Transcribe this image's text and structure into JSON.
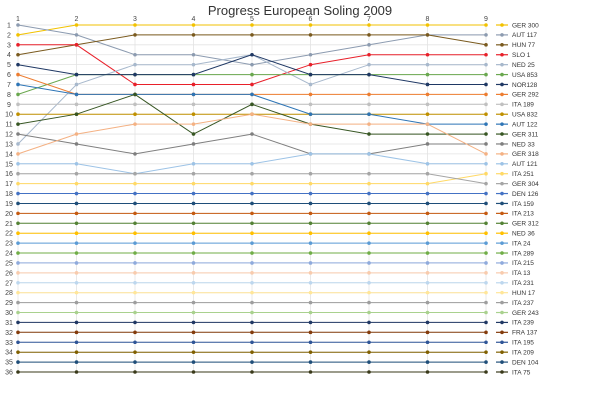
{
  "chart_data": {
    "type": "line",
    "title": "Progress European Soling 2009",
    "x": [
      1,
      2,
      3,
      4,
      5,
      6,
      7,
      8,
      9
    ],
    "x_tick_labels": [
      "1",
      "2",
      "3",
      "4",
      "5",
      "6",
      "7",
      "8",
      "9"
    ],
    "ylim": [
      1,
      36
    ],
    "y_inverted": true,
    "y_tick_labels": [
      "1",
      "2",
      "3",
      "4",
      "5",
      "6",
      "7",
      "8",
      "9",
      "10",
      "11",
      "12",
      "13",
      "14",
      "15",
      "16",
      "17",
      "18",
      "19",
      "20",
      "21",
      "22",
      "23",
      "24",
      "25",
      "26",
      "27",
      "28",
      "29",
      "30",
      "31",
      "32",
      "33",
      "34",
      "35",
      "36"
    ],
    "grid": true,
    "legend_position": "right",
    "series": [
      {
        "name": "GER 300",
        "color": "#f2c200",
        "values": [
          2,
          1,
          1,
          1,
          1,
          1,
          1,
          1,
          1
        ]
      },
      {
        "name": "AUT 117",
        "color": "#8c9bb0",
        "values": [
          1,
          2,
          4,
          4,
          5,
          4,
          3,
          2,
          2
        ]
      },
      {
        "name": "HUN 77",
        "color": "#7a5a1e",
        "values": [
          4,
          3,
          2,
          2,
          2,
          2,
          2,
          2,
          3
        ]
      },
      {
        "name": "SLO 1",
        "color": "#e8202a",
        "values": [
          3,
          3,
          7,
          7,
          7,
          5,
          4,
          4,
          4
        ]
      },
      {
        "name": "NED 25",
        "color": "#a7b8cc",
        "values": [
          13,
          7,
          5,
          5,
          4,
          7,
          5,
          5,
          5
        ]
      },
      {
        "name": "USA 853",
        "color": "#6aa84f",
        "values": [
          8,
          6,
          6,
          6,
          6,
          6,
          6,
          6,
          6
        ]
      },
      {
        "name": "NOR128",
        "color": "#1f3864",
        "values": [
          5,
          6,
          6,
          6,
          4,
          6,
          6,
          7,
          7
        ]
      },
      {
        "name": "GER 292",
        "color": "#ed7d31",
        "values": [
          6,
          8,
          8,
          8,
          8,
          8,
          8,
          8,
          8
        ]
      },
      {
        "name": "ITA 189",
        "color": "#c0c0c0",
        "values": [
          9,
          9,
          9,
          9,
          9,
          9,
          9,
          9,
          9
        ]
      },
      {
        "name": "USA 832",
        "color": "#bf9000",
        "values": [
          10,
          10,
          10,
          10,
          10,
          10,
          10,
          10,
          10
        ]
      },
      {
        "name": "AUT 122",
        "color": "#2e75b6",
        "values": [
          7,
          8,
          8,
          8,
          8,
          10,
          10,
          11,
          11
        ]
      },
      {
        "name": "GER 311",
        "color": "#375623",
        "values": [
          11,
          10,
          8,
          12,
          9,
          11,
          12,
          12,
          12
        ]
      },
      {
        "name": "NED 33",
        "color": "#7f7f7f",
        "values": [
          12,
          13,
          14,
          13,
          12,
          14,
          14,
          13,
          13
        ]
      },
      {
        "name": "GER 318",
        "color": "#f4b183",
        "values": [
          14,
          12,
          11,
          11,
          10,
          11,
          11,
          11,
          14
        ]
      },
      {
        "name": "AUT 121",
        "color": "#9dc3e6",
        "values": [
          15,
          15,
          16,
          15,
          15,
          14,
          14,
          15,
          15
        ]
      },
      {
        "name": "ITA 251",
        "color": "#ffd966",
        "values": [
          17,
          17,
          17,
          17,
          17,
          17,
          17,
          17,
          16
        ]
      },
      {
        "name": "GER 304",
        "color": "#a5a5a5",
        "values": [
          16,
          16,
          16,
          16,
          16,
          16,
          16,
          16,
          17
        ]
      },
      {
        "name": "DEN 126",
        "color": "#4472c4",
        "values": [
          18,
          18,
          18,
          18,
          18,
          18,
          18,
          18,
          18
        ]
      },
      {
        "name": "ITA 159",
        "color": "#1f4e79",
        "values": [
          19,
          19,
          19,
          19,
          19,
          19,
          19,
          19,
          19
        ]
      },
      {
        "name": "ITA 213",
        "color": "#c55a11",
        "values": [
          20,
          20,
          20,
          20,
          20,
          20,
          20,
          20,
          20
        ]
      },
      {
        "name": "GER 312",
        "color": "#548235",
        "values": [
          21,
          21,
          21,
          21,
          21,
          21,
          21,
          21,
          21
        ]
      },
      {
        "name": "NED 36",
        "color": "#ffc000",
        "values": [
          22,
          22,
          22,
          22,
          22,
          22,
          22,
          22,
          22
        ]
      },
      {
        "name": "ITA 24",
        "color": "#5b9bd5",
        "values": [
          23,
          23,
          23,
          23,
          23,
          23,
          23,
          23,
          23
        ]
      },
      {
        "name": "ITA 289",
        "color": "#70ad47",
        "values": [
          24,
          24,
          24,
          24,
          24,
          24,
          24,
          24,
          24
        ]
      },
      {
        "name": "ITA 215",
        "color": "#8faadc",
        "values": [
          25,
          25,
          25,
          25,
          25,
          25,
          25,
          25,
          25
        ]
      },
      {
        "name": "ITA 13",
        "color": "#f8cbad",
        "values": [
          26,
          26,
          26,
          26,
          26,
          26,
          26,
          26,
          26
        ]
      },
      {
        "name": "ITA 231",
        "color": "#bdd7ee",
        "values": [
          27,
          27,
          27,
          27,
          27,
          27,
          27,
          27,
          27
        ]
      },
      {
        "name": "HUN 17",
        "color": "#ffe699",
        "values": [
          28,
          28,
          28,
          28,
          28,
          28,
          28,
          28,
          28
        ]
      },
      {
        "name": "ITA 237",
        "color": "#9e9e9e",
        "values": [
          29,
          29,
          29,
          29,
          29,
          29,
          29,
          29,
          29
        ]
      },
      {
        "name": "GER 243",
        "color": "#a9d18e",
        "values": [
          30,
          30,
          30,
          30,
          30,
          30,
          30,
          30,
          30
        ]
      },
      {
        "name": "ITA 239",
        "color": "#203864",
        "values": [
          31,
          31,
          31,
          31,
          31,
          31,
          31,
          31,
          31
        ]
      },
      {
        "name": "FRA 137",
        "color": "#843c0c",
        "values": [
          32,
          32,
          32,
          32,
          32,
          32,
          32,
          32,
          32
        ]
      },
      {
        "name": "ITA 195",
        "color": "#2f5597",
        "values": [
          33,
          33,
          33,
          33,
          33,
          33,
          33,
          33,
          33
        ]
      },
      {
        "name": "ITA 209",
        "color": "#806000",
        "values": [
          34,
          34,
          34,
          34,
          34,
          34,
          34,
          34,
          34
        ]
      },
      {
        "name": "DEN 104",
        "color": "#1f4e79",
        "values": [
          35,
          35,
          35,
          35,
          35,
          35,
          35,
          35,
          35
        ]
      },
      {
        "name": "ITA 75",
        "color": "#3a3a1a",
        "values": [
          36,
          36,
          36,
          36,
          36,
          36,
          36,
          36,
          36
        ]
      }
    ]
  }
}
